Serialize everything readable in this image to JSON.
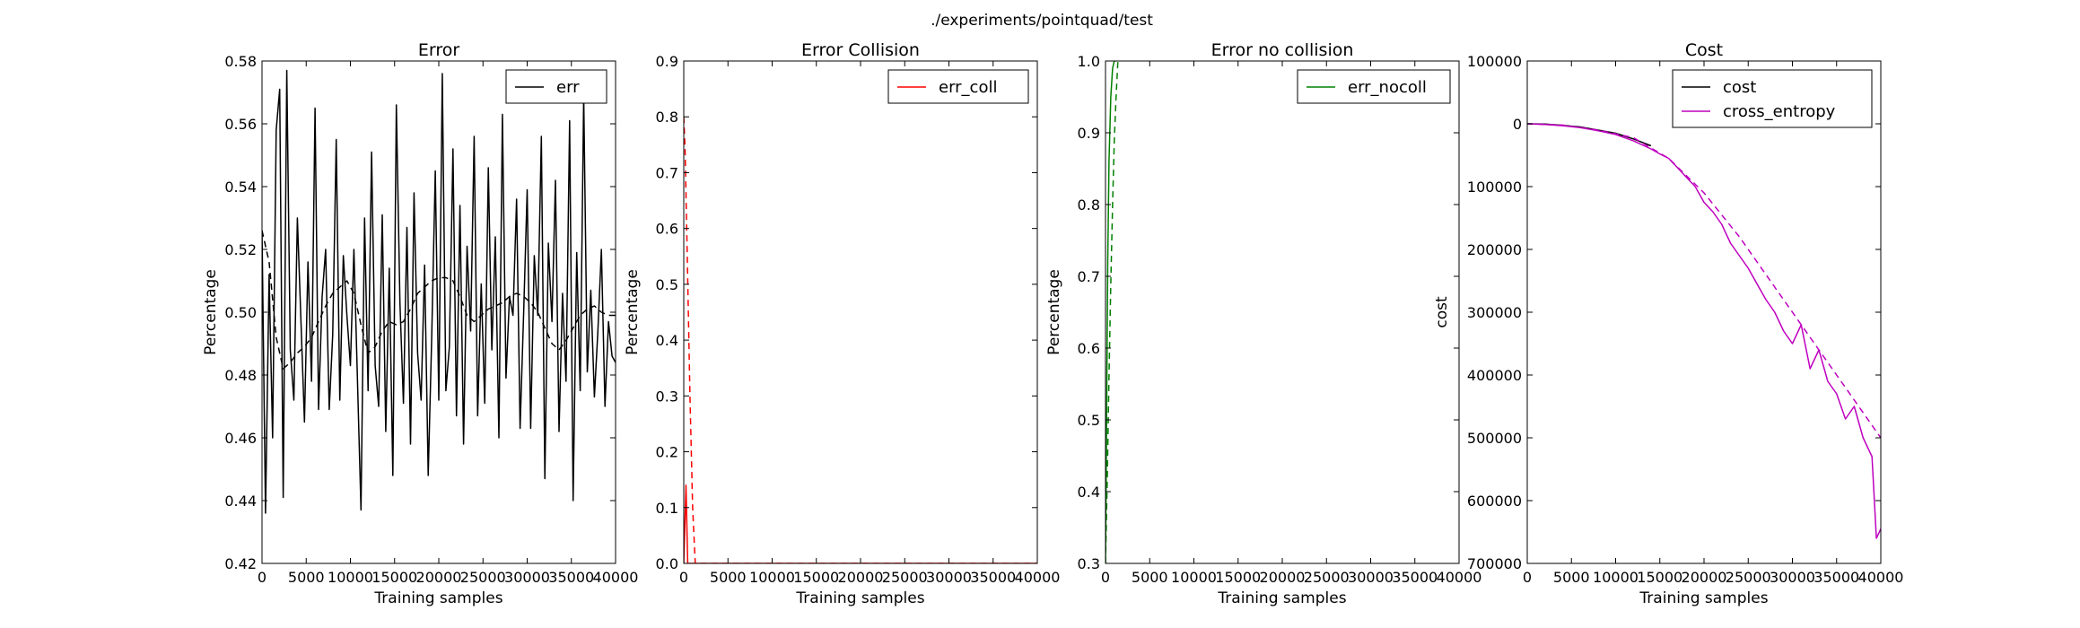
{
  "figure_title": "./experiments/pointquad/test",
  "chart_data": [
    {
      "type": "line",
      "title": "Error",
      "xlabel": "Training samples",
      "ylabel": "Percentage",
      "xlim": [
        0,
        40000
      ],
      "ylim": [
        0.42,
        0.58
      ],
      "xticks": [
        0,
        5000,
        10000,
        15000,
        20000,
        25000,
        30000,
        35000,
        40000
      ],
      "xtick_labels": [
        "0",
        "5000",
        "10000",
        "15000",
        "20000",
        "25000",
        "30000",
        "35000",
        "40000"
      ],
      "yticks": [
        0.42,
        0.44,
        0.46,
        0.48,
        0.5,
        0.52,
        0.54,
        0.56,
        0.58
      ],
      "ytick_labels": [
        "0.42",
        "0.44",
        "0.46",
        "0.48",
        "0.50",
        "0.52",
        "0.54",
        "0.56",
        "0.58"
      ],
      "legend": "upper-right",
      "series": [
        {
          "name": "err",
          "legend": true,
          "color": "#000000",
          "dash": false,
          "x": [
            0,
            400,
            800,
            1200,
            1600,
            2000,
            2400,
            2800,
            3200,
            3600,
            4000,
            4400,
            4800,
            5200,
            5600,
            6000,
            6400,
            6800,
            7200,
            7600,
            8000,
            8400,
            8800,
            9200,
            9600,
            10000,
            10400,
            10800,
            11200,
            11600,
            12000,
            12400,
            12800,
            13200,
            13600,
            14000,
            14400,
            14800,
            15200,
            15600,
            16000,
            16400,
            16800,
            17200,
            17600,
            18000,
            18400,
            18800,
            19200,
            19600,
            20000,
            20400,
            20800,
            21200,
            21600,
            22000,
            22400,
            22800,
            23200,
            23600,
            24000,
            24400,
            24800,
            25200,
            25600,
            26000,
            26400,
            26800,
            27200,
            27600,
            28000,
            28400,
            28800,
            29200,
            29600,
            30000,
            30400,
            30800,
            31200,
            31600,
            32000,
            32400,
            32800,
            33200,
            33600,
            34000,
            34400,
            34800,
            35200,
            35600,
            36000,
            36400,
            36800,
            37200,
            37600,
            38000,
            38400,
            38800,
            39200,
            39600,
            40000
          ],
          "y": [
            0.526,
            0.436,
            0.512,
            0.46,
            0.558,
            0.571,
            0.441,
            0.577,
            0.488,
            0.472,
            0.53,
            0.498,
            0.465,
            0.516,
            0.478,
            0.565,
            0.469,
            0.505,
            0.52,
            0.469,
            0.493,
            0.555,
            0.472,
            0.518,
            0.499,
            0.483,
            0.52,
            0.478,
            0.437,
            0.53,
            0.475,
            0.551,
            0.483,
            0.47,
            0.531,
            0.462,
            0.514,
            0.448,
            0.566,
            0.503,
            0.471,
            0.527,
            0.458,
            0.538,
            0.487,
            0.472,
            0.515,
            0.448,
            0.492,
            0.545,
            0.472,
            0.576,
            0.475,
            0.489,
            0.552,
            0.467,
            0.534,
            0.458,
            0.521,
            0.494,
            0.556,
            0.467,
            0.509,
            0.471,
            0.546,
            0.488,
            0.524,
            0.46,
            0.563,
            0.479,
            0.505,
            0.499,
            0.536,
            0.463,
            0.5,
            0.539,
            0.463,
            0.518,
            0.499,
            0.556,
            0.447,
            0.522,
            0.497,
            0.542,
            0.462,
            0.506,
            0.478,
            0.561,
            0.44,
            0.519,
            0.475,
            0.569,
            0.481,
            0.507,
            0.473,
            0.494,
            0.52,
            0.47,
            0.497,
            0.486,
            0.484
          ]
        },
        {
          "name": "err (smoothed)",
          "legend": false,
          "color": "#000000",
          "dash": true,
          "x": [
            0,
            800,
            1600,
            2400,
            3200,
            4000,
            4800,
            5600,
            6400,
            7200,
            8000,
            8800,
            9600,
            10400,
            11200,
            12000,
            12800,
            13600,
            14400,
            15200,
            16000,
            16800,
            17600,
            18400,
            19200,
            20000,
            20800,
            21600,
            22400,
            23200,
            24000,
            24800,
            25600,
            26400,
            27200,
            28000,
            28800,
            29600,
            30400,
            31200,
            32000,
            32800,
            33600,
            34400,
            35200,
            36000,
            36800,
            37600,
            38400,
            39200,
            40000
          ],
          "y": [
            0.526,
            0.516,
            0.492,
            0.482,
            0.484,
            0.487,
            0.489,
            0.492,
            0.497,
            0.502,
            0.506,
            0.508,
            0.51,
            0.506,
            0.496,
            0.487,
            0.489,
            0.494,
            0.497,
            0.496,
            0.497,
            0.501,
            0.506,
            0.508,
            0.51,
            0.511,
            0.511,
            0.51,
            0.505,
            0.499,
            0.497,
            0.499,
            0.501,
            0.502,
            0.503,
            0.505,
            0.506,
            0.505,
            0.503,
            0.5,
            0.495,
            0.49,
            0.488,
            0.491,
            0.495,
            0.499,
            0.501,
            0.502,
            0.5,
            0.499,
            0.499
          ]
        }
      ]
    },
    {
      "type": "line",
      "title": "Error Collision",
      "xlabel": "Training samples",
      "ylabel": "Percentage",
      "xlim": [
        0,
        40000
      ],
      "ylim": [
        0.0,
        0.9
      ],
      "xticks": [
        0,
        5000,
        10000,
        15000,
        20000,
        25000,
        30000,
        35000,
        40000
      ],
      "xtick_labels": [
        "0",
        "5000",
        "10000",
        "15000",
        "20000",
        "25000",
        "30000",
        "35000",
        "40000"
      ],
      "yticks": [
        0.0,
        0.1,
        0.2,
        0.3,
        0.4,
        0.5,
        0.6,
        0.7,
        0.8,
        0.9
      ],
      "ytick_labels": [
        "0.0",
        "0.1",
        "0.2",
        "0.3",
        "0.4",
        "0.5",
        "0.6",
        "0.7",
        "0.8",
        "0.9"
      ],
      "legend": "upper-right",
      "series": [
        {
          "name": "err_coll",
          "legend": true,
          "color": "#ff0000",
          "dash": false,
          "x": [
            0,
            250,
            450,
            800,
            1200,
            40000
          ],
          "y": [
            0.0,
            0.14,
            0.0,
            0.0,
            0.0,
            0.0
          ]
        },
        {
          "name": "err_coll (smoothed)",
          "legend": false,
          "color": "#ff0000",
          "dash": true,
          "x": [
            0,
            150,
            400,
            700,
            1000,
            1300,
            40000
          ],
          "y": [
            0.8,
            0.74,
            0.55,
            0.3,
            0.1,
            0.0,
            0.0
          ]
        }
      ]
    },
    {
      "type": "line",
      "title": "Error no collision",
      "xlabel": "Training samples",
      "ylabel": "Percentage",
      "xlim": [
        0,
        40000
      ],
      "ylim": [
        0.3,
        1.0
      ],
      "xticks": [
        0,
        5000,
        10000,
        15000,
        20000,
        25000,
        30000,
        35000,
        40000
      ],
      "xtick_labels": [
        "0",
        "5000",
        "10000",
        "15000",
        "20000",
        "25000",
        "30000",
        "35000",
        "40000"
      ],
      "yticks": [
        0.3,
        0.4,
        0.5,
        0.6,
        0.7,
        0.8,
        0.9,
        1.0
      ],
      "ytick_labels": [
        "0.3",
        "0.4",
        "0.5",
        "0.6",
        "0.7",
        "0.8",
        "0.9",
        "1.0"
      ],
      "legend": "upper-right",
      "series": [
        {
          "name": "err_nocoll",
          "legend": true,
          "color": "#008000",
          "dash": false,
          "x": [
            0,
            50,
            150,
            250,
            400,
            600,
            800,
            1000,
            1150
          ],
          "y": [
            0.3,
            0.38,
            0.55,
            0.72,
            0.86,
            0.95,
            0.99,
            1.0,
            1.0
          ]
        },
        {
          "name": "err_nocoll (smoothed)",
          "legend": false,
          "color": "#008000",
          "dash": true,
          "x": [
            0,
            200,
            400,
            600,
            800,
            1000,
            1200,
            1400
          ],
          "y": [
            0.3,
            0.42,
            0.56,
            0.69,
            0.8,
            0.89,
            0.95,
            1.0
          ]
        }
      ]
    },
    {
      "type": "line",
      "title": "Cost",
      "xlabel": "Training samples",
      "ylabel": "cost",
      "xlim": [
        0,
        40000
      ],
      "ylim": [
        -700000,
        100000
      ],
      "xticks": [
        0,
        5000,
        10000,
        15000,
        20000,
        25000,
        30000,
        35000,
        40000
      ],
      "xtick_labels": [
        "0",
        "5000",
        "10000",
        "15000",
        "20000",
        "25000",
        "30000",
        "35000",
        "40000"
      ],
      "yticks": [
        -700000,
        -600000,
        -500000,
        -400000,
        -300000,
        -200000,
        -100000,
        0,
        100000
      ],
      "ytick_labels": [
        "700000",
        "600000",
        "500000",
        "400000",
        "300000",
        "200000",
        "100000",
        "0",
        "100000"
      ],
      "legend": "upper-right",
      "series": [
        {
          "name": "cost",
          "legend": true,
          "color": "#000000",
          "dash": false,
          "x": [
            0,
            2000,
            4000,
            6000,
            8000,
            10000,
            12000,
            14000
          ],
          "y": [
            0,
            -500,
            -2500,
            -5000,
            -10000,
            -15000,
            -24000,
            -35000
          ]
        },
        {
          "name": "cross_entropy",
          "legend": true,
          "color": "#bf00bf",
          "dash": false,
          "x": [
            0,
            2000,
            4000,
            6000,
            8000,
            10000,
            12000,
            14000,
            15000,
            16000,
            17000,
            18000,
            19000,
            20000,
            21000,
            22000,
            23000,
            24000,
            25000,
            26000,
            27000,
            28000,
            29000,
            30000,
            31000,
            32000,
            33000,
            34000,
            35000,
            36000,
            37000,
            38000,
            39000,
            39500,
            40000
          ],
          "y": [
            0,
            -1000,
            -3000,
            -6000,
            -11000,
            -17000,
            -27000,
            -40000,
            -48000,
            -55000,
            -70000,
            -85000,
            -100000,
            -125000,
            -140000,
            -160000,
            -190000,
            -210000,
            -230000,
            -255000,
            -280000,
            -300000,
            -330000,
            -350000,
            -320000,
            -390000,
            -360000,
            -410000,
            -430000,
            -470000,
            -450000,
            -500000,
            -530000,
            -660000,
            -645000
          ]
        },
        {
          "name": "cross_entropy (smoothed)",
          "legend": false,
          "color": "#bf00bf",
          "dash": true,
          "x": [
            0,
            4000,
            8000,
            12000,
            16000,
            20000,
            24000,
            28000,
            32000,
            36000,
            40000
          ],
          "y": [
            0,
            -2000,
            -10000,
            -22000,
            -55000,
            -110000,
            -180000,
            -260000,
            -340000,
            -420000,
            -500000
          ]
        }
      ]
    }
  ]
}
